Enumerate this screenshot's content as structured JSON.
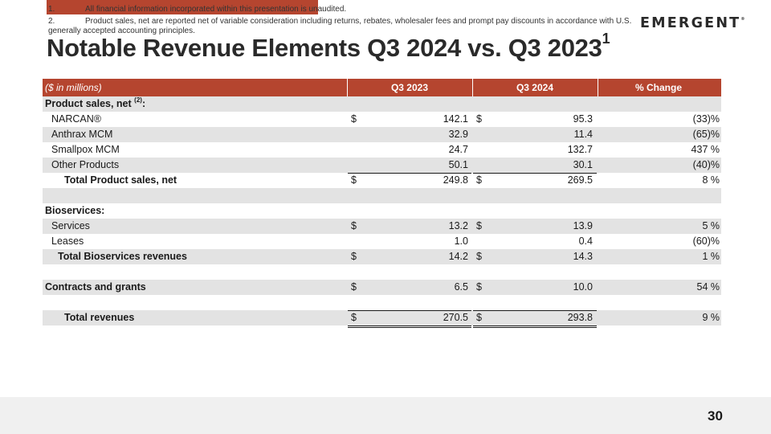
{
  "brand": {
    "logo_text": "EMERGENT",
    "logo_mark": "®",
    "accent_color": "#b5452f"
  },
  "slide": {
    "title": "Notable Revenue Elements Q3 2024 vs. Q3 2023",
    "title_superscript": "1",
    "page_number": "30"
  },
  "table": {
    "unit_label": "($ in millions)",
    "columns": [
      "Q3 2023",
      "Q3 2024",
      "% Change"
    ],
    "rows": [
      {
        "label": "Product sales, net",
        "sup": "(2)",
        "suffix": ":"
      },
      {
        "label": "NARCAN®",
        "c1": "$",
        "v1": "142.1",
        "c2": "$",
        "v2": "95.3",
        "v3": "(33)%"
      },
      {
        "label": "Anthrax MCM",
        "v1": "32.9",
        "v2": "11.4",
        "v3": "(65)%"
      },
      {
        "label": "Smallpox MCM",
        "v1": "24.7",
        "v2": "132.7",
        "v3": "437 %"
      },
      {
        "label": "Other Products",
        "v1": "50.1",
        "v2": "30.1",
        "v3": "(40)%"
      },
      {
        "label": "Total Product sales, net",
        "c1": "$",
        "v1": "249.8",
        "c2": "$",
        "v2": "269.5",
        "v3": "8 %"
      },
      {
        "label": "Bioservices:"
      },
      {
        "label": "Services",
        "c1": "$",
        "v1": "13.2",
        "c2": "$",
        "v2": "13.9",
        "v3": "5 %"
      },
      {
        "label": "Leases",
        "v1": "1.0",
        "v2": "0.4",
        "v3": "(60)%"
      },
      {
        "label": "Total Bioservices revenues",
        "c1": "$",
        "v1": "14.2",
        "c2": "$",
        "v2": "14.3",
        "v3": "1 %"
      },
      {
        "label": "Contracts and grants",
        "c1": "$",
        "v1": "6.5",
        "c2": "$",
        "v2": "10.0",
        "v3": "54 %"
      },
      {
        "label": "Total revenues",
        "c1": "$",
        "v1": "270.5",
        "c2": "$",
        "v2": "293.8",
        "v3": "9 %"
      }
    ]
  },
  "footnotes": [
    {
      "num": "1.",
      "text": "All financial information incorporated within this presentation is unaudited."
    },
    {
      "num": "2.",
      "text": "Product sales, net are reported net of variable consideration including returns, rebates, wholesaler fees and prompt pay discounts in accordance with U.S.",
      "continuation": "generally accepted accounting principles."
    }
  ]
}
